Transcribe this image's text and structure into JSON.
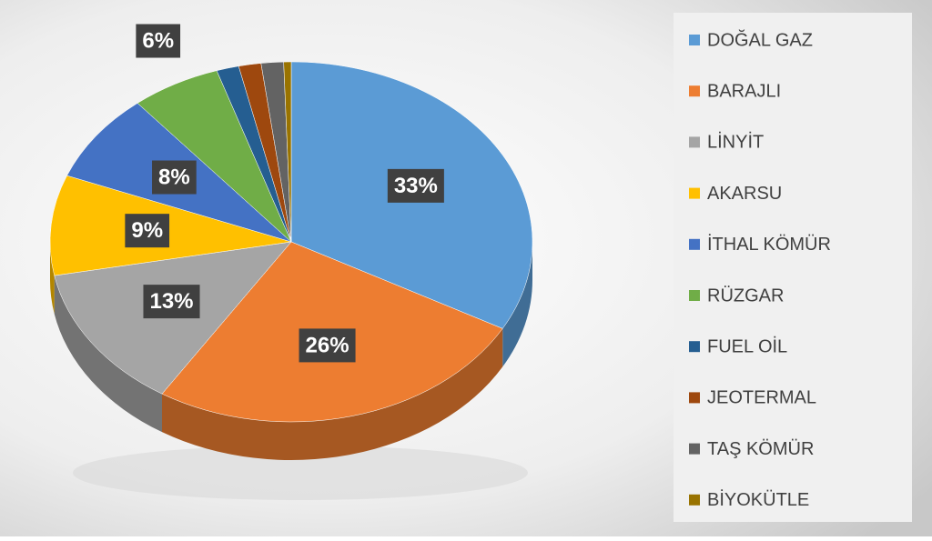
{
  "chart_data": {
    "type": "pie",
    "categories": [
      "DOĞAL GAZ",
      "BARAJLI",
      "LİNYİT",
      "AKARSU",
      "İTHAL KÖMÜR",
      "RÜZGAR",
      "FUEL OİL",
      "JEOTERMAL",
      "TAŞ KÖMÜR",
      "BİYOKÜTLE"
    ],
    "values": [
      33,
      26,
      13,
      9,
      8,
      6,
      1.5,
      1.5,
      1.5,
      0.5
    ],
    "value_labels": [
      "33%",
      "26%",
      "13%",
      "9%",
      "8%",
      "6%",
      null,
      null,
      null,
      null
    ],
    "colors": [
      "#5b9bd5",
      "#ed7d31",
      "#a5a5a5",
      "#ffc000",
      "#4472c4",
      "#70ad47",
      "#255e91",
      "#9e480e",
      "#636363",
      "#997300"
    ],
    "legend": "right"
  }
}
